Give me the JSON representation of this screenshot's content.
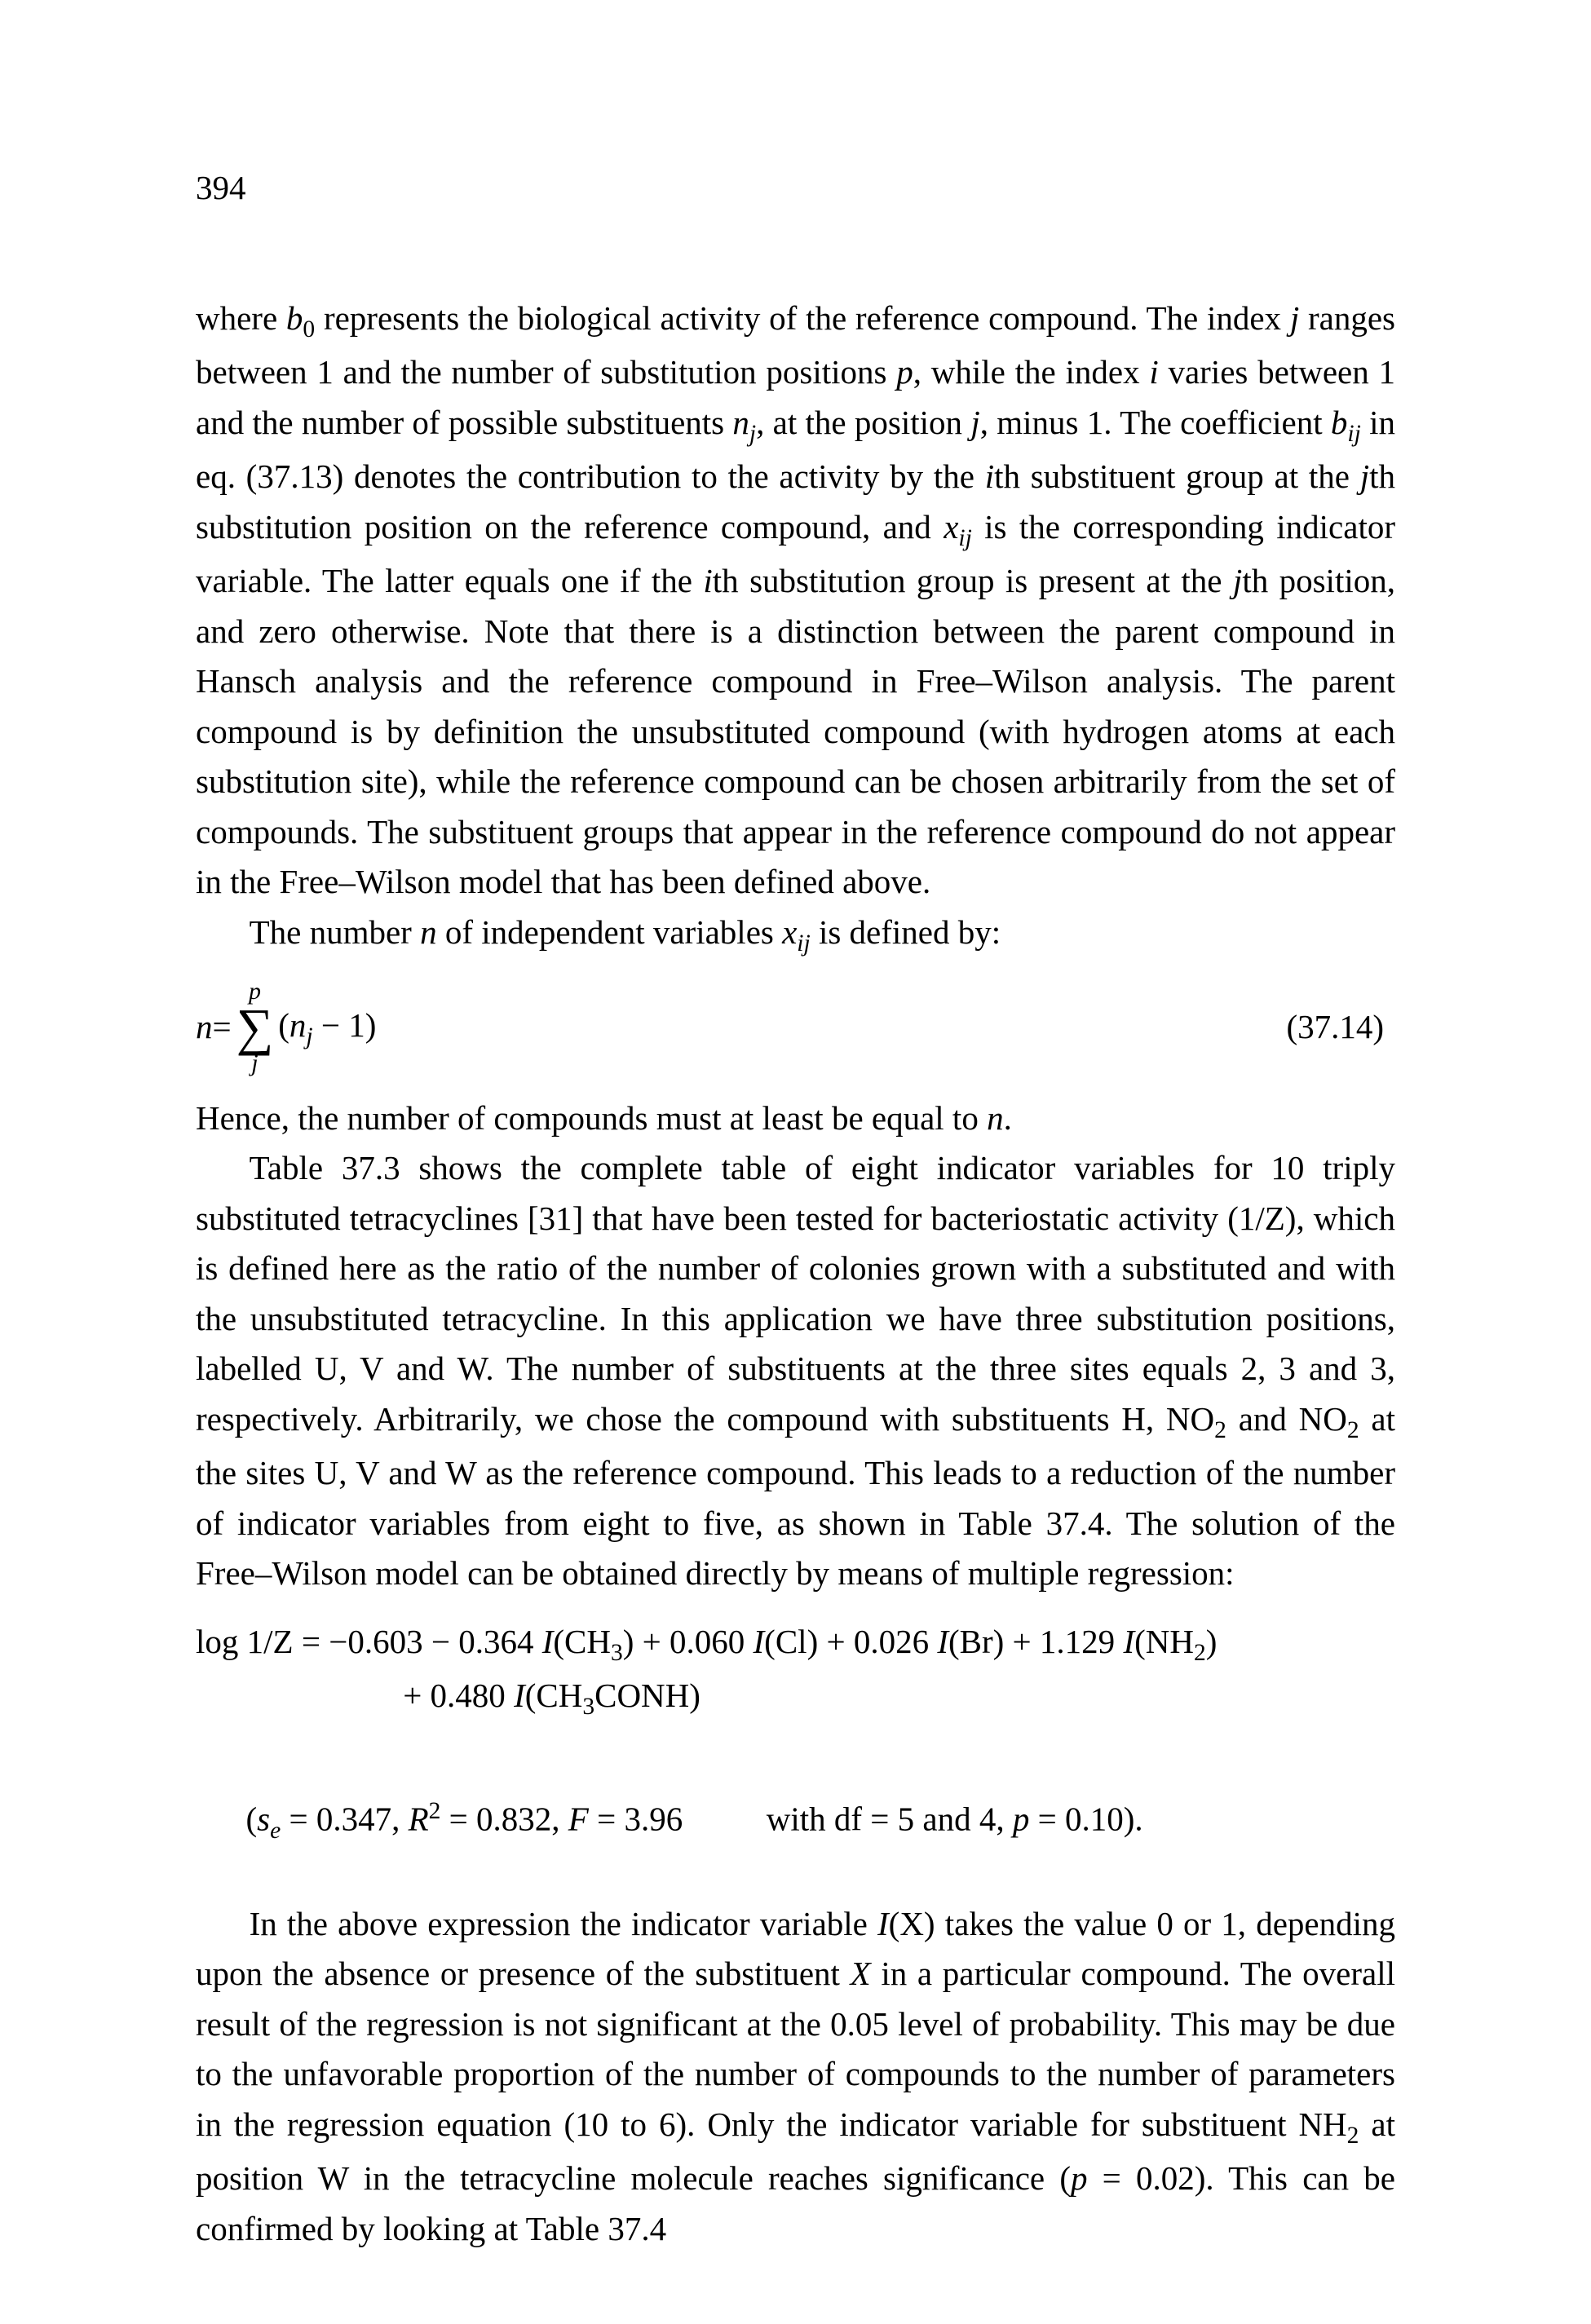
{
  "document": {
    "page_number": "394",
    "fontsize_body_pt": 11,
    "fontsize_pagenum_pt": 11,
    "font_family": "Times New Roman",
    "text_color": "#000000",
    "background_color": "#ffffff",
    "body": {
      "para1_run1": "where ",
      "b0": "b",
      "b0_sub": "0",
      "para1_run2": " represents the biological activity of the reference compound. The index ",
      "j1": "j",
      "para1_run3": " ranges between 1 and the number of substitution positions ",
      "p1": "p",
      "para1_run4": ", while the index ",
      "i1": "i",
      "para1_run5": " varies between 1 and the number of possible substituents ",
      "nj": "n",
      "nj_sub": "j",
      "para1_run6": ", at the position ",
      "j2": "j",
      "para1_run7": ", minus 1. The coefficient ",
      "bij": "b",
      "bij_sub": "ij",
      "para1_run8": " in eq. (37.13) denotes the contribution to the activity by the ",
      "ith1": "i",
      "para1_run9": "th substituent group at the ",
      "jth1": "j",
      "para1_run10": "th substitution position on the reference compound, and ",
      "xij1": "x",
      "xij1_sub": "ij",
      "para1_run11": " is the corresponding indicator variable. The latter equals one if the ",
      "ith2": "i",
      "para1_run12": "th substitution group is present at the ",
      "jth2": "j",
      "para1_run13": "th position, and zero otherwise. Note that there is a distinction between the parent compound in Hansch analysis and the reference compound in Free–Wilson analysis. The parent compound is by definition the unsubstituted compound (with hydrogen atoms at each substitution site), while the reference compound can be chosen arbitrarily from the set of compounds. The substituent groups that appear in the reference compound do not appear in the Free–Wilson model that has been defined above.",
      "para2_run1": "The number ",
      "n1": "n",
      "para2_run2": " of independent variables ",
      "xij2": "x",
      "xij2_sub": "ij",
      "para2_run3": " is defined by:",
      "equation1": {
        "lhs_var": "n",
        "lhs_eq": " = ",
        "sum_upper": "p",
        "sum_sigma": "∑",
        "sum_lower": "j",
        "summand_open": "(",
        "summand_var": "n",
        "summand_sub": "j",
        "summand_rest": " − 1)",
        "number": "(37.14)"
      },
      "para3_run1": "Hence, the number of compounds must at least be equal to ",
      "n2": "n",
      "para3_run2": ".",
      "para4": "Table 37.3 shows the complete table of eight indicator variables for 10 triply substituted tetracyclines [31] that have been tested for bacteriostatic activity (1/Z), which is defined here as the ratio of the number of colonies grown with a substituted and with the unsubstituted tetracycline. In this application we have three substitution positions, labelled U, V and W. The number of substituents at the three sites equals 2, 3 and 3, respectively. Arbitrarily, we chose the compound with substituents H, NO",
      "para4_sub1": "2",
      "para4_mid": " and NO",
      "para4_sub2": "2",
      "para4_end": " at the sites U, V and W as the reference compound. This leads to a reduction of the number of indicator variables from eight to five, as shown in Table 37.4. The solution of the Free–Wilson model can be obtained directly by means of multiple regression:",
      "equation2_line1_a": "log 1/Z = −0.603 − 0.364 ",
      "equation2_I1": "I",
      "equation2_ch3": "(CH",
      "equation2_ch3_sub": "3",
      "equation2_line1_b": ") + 0.060 ",
      "equation2_I2": "I",
      "equation2_cl": "(Cl) + 0.026 ",
      "equation2_I3": "I",
      "equation2_br": "(Br) + 1.129 ",
      "equation2_I4": "I",
      "equation2_nh2": "(NH",
      "equation2_nh2_sub": "2",
      "equation2_line1_c": ")",
      "equation2_line2_a": "+ 0.480 ",
      "equation2_I5": "I",
      "equation2_ch3conh": "(CH",
      "equation2_ch3conh_sub": "3",
      "equation2_ch3conh_end": "CONH)",
      "stats_open": "(",
      "stats_se": "s",
      "stats_se_sub": "e",
      "stats_se_val": " = 0.347, ",
      "stats_R": "R",
      "stats_R_sup": "2",
      "stats_R_val": " = 0.832, ",
      "stats_F": "F",
      "stats_F_val": " = 3.96",
      "stats_gap": "          with df = 5 and 4, ",
      "stats_p": "p",
      "stats_p_val": " = 0.10).",
      "para5_run1": "In the above expression the indicator variable ",
      "IX": "I",
      "IX_arg": "(X)",
      "para5_run2": " takes the value 0 or 1, depending upon the absence or presence of the substituent ",
      "X": "X",
      "para5_run3": " in a particular compound. The overall result of the regression is not significant at the 0.05 level of probability. This may be due to the unfavorable proportion of the number of compounds to the number of parameters in the regression equation (10 to 6). Only the indicator variable for substituent NH",
      "para5_sub": "2",
      "para5_run4": " at position W in the tetracycline molecule reaches significance (",
      "p2": "p",
      "para5_run5": " = 0.02). This can be confirmed by looking at Table 37.4"
    }
  }
}
